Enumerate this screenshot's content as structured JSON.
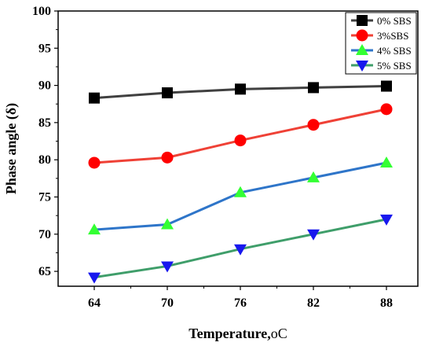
{
  "chart_data": {
    "type": "line",
    "xlabel": "Temperature,",
    "xlabel_unit": "oC",
    "ylabel": "Phase angle (δ)",
    "categories": [
      "64",
      "70",
      "76",
      "82",
      "88"
    ],
    "ylim": [
      63,
      100
    ],
    "yticks": [
      65,
      70,
      75,
      80,
      85,
      90,
      95,
      100
    ],
    "grid": false,
    "legend_position": "top-right",
    "series": [
      {
        "name": "0% SBS",
        "marker": "square",
        "color": "#000000",
        "line_color": "#404040",
        "values": [
          88.3,
          89.0,
          89.5,
          89.7,
          89.9
        ]
      },
      {
        "name": "3%SBS",
        "marker": "circle",
        "color": "#ff0000",
        "line_color": "#ef4136",
        "values": [
          79.6,
          80.3,
          82.6,
          84.7,
          86.8
        ]
      },
      {
        "name": "4% SBS",
        "marker": "triangle-up",
        "color": "#33ff33",
        "line_color": "#2e75c9",
        "values": [
          70.6,
          71.3,
          75.6,
          77.6,
          79.6
        ]
      },
      {
        "name": "5% SBS",
        "marker": "triangle-down",
        "color": "#1818ee",
        "line_color": "#3f9e6a",
        "values": [
          64.2,
          65.7,
          68.0,
          70.0,
          72.0
        ]
      }
    ]
  }
}
